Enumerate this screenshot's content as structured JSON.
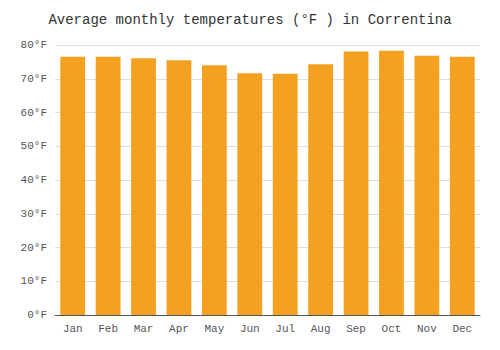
{
  "chart_data": {
    "type": "bar",
    "title": "Average monthly temperatures (°F ) in Correntina",
    "categories": [
      "Jan",
      "Feb",
      "Mar",
      "Apr",
      "May",
      "Jun",
      "Jul",
      "Aug",
      "Sep",
      "Oct",
      "Nov",
      "Dec"
    ],
    "values": [
      76.5,
      76.5,
      76.1,
      75.5,
      74.0,
      71.6,
      71.5,
      74.3,
      78.1,
      78.3,
      76.8,
      76.5
    ],
    "color": "#F4A020",
    "ylim": [
      0,
      80
    ],
    "yticks": [
      {
        "value": 0,
        "label": "0°F"
      },
      {
        "value": 10,
        "label": "10°F"
      },
      {
        "value": 20,
        "label": "20°F"
      },
      {
        "value": 30,
        "label": "30°F"
      },
      {
        "value": 40,
        "label": "40°F"
      },
      {
        "value": 50,
        "label": "50°F"
      },
      {
        "value": 60,
        "label": "60°F"
      },
      {
        "value": 70,
        "label": "70°F"
      },
      {
        "value": 80,
        "label": "80°F"
      }
    ],
    "grid": true
  }
}
